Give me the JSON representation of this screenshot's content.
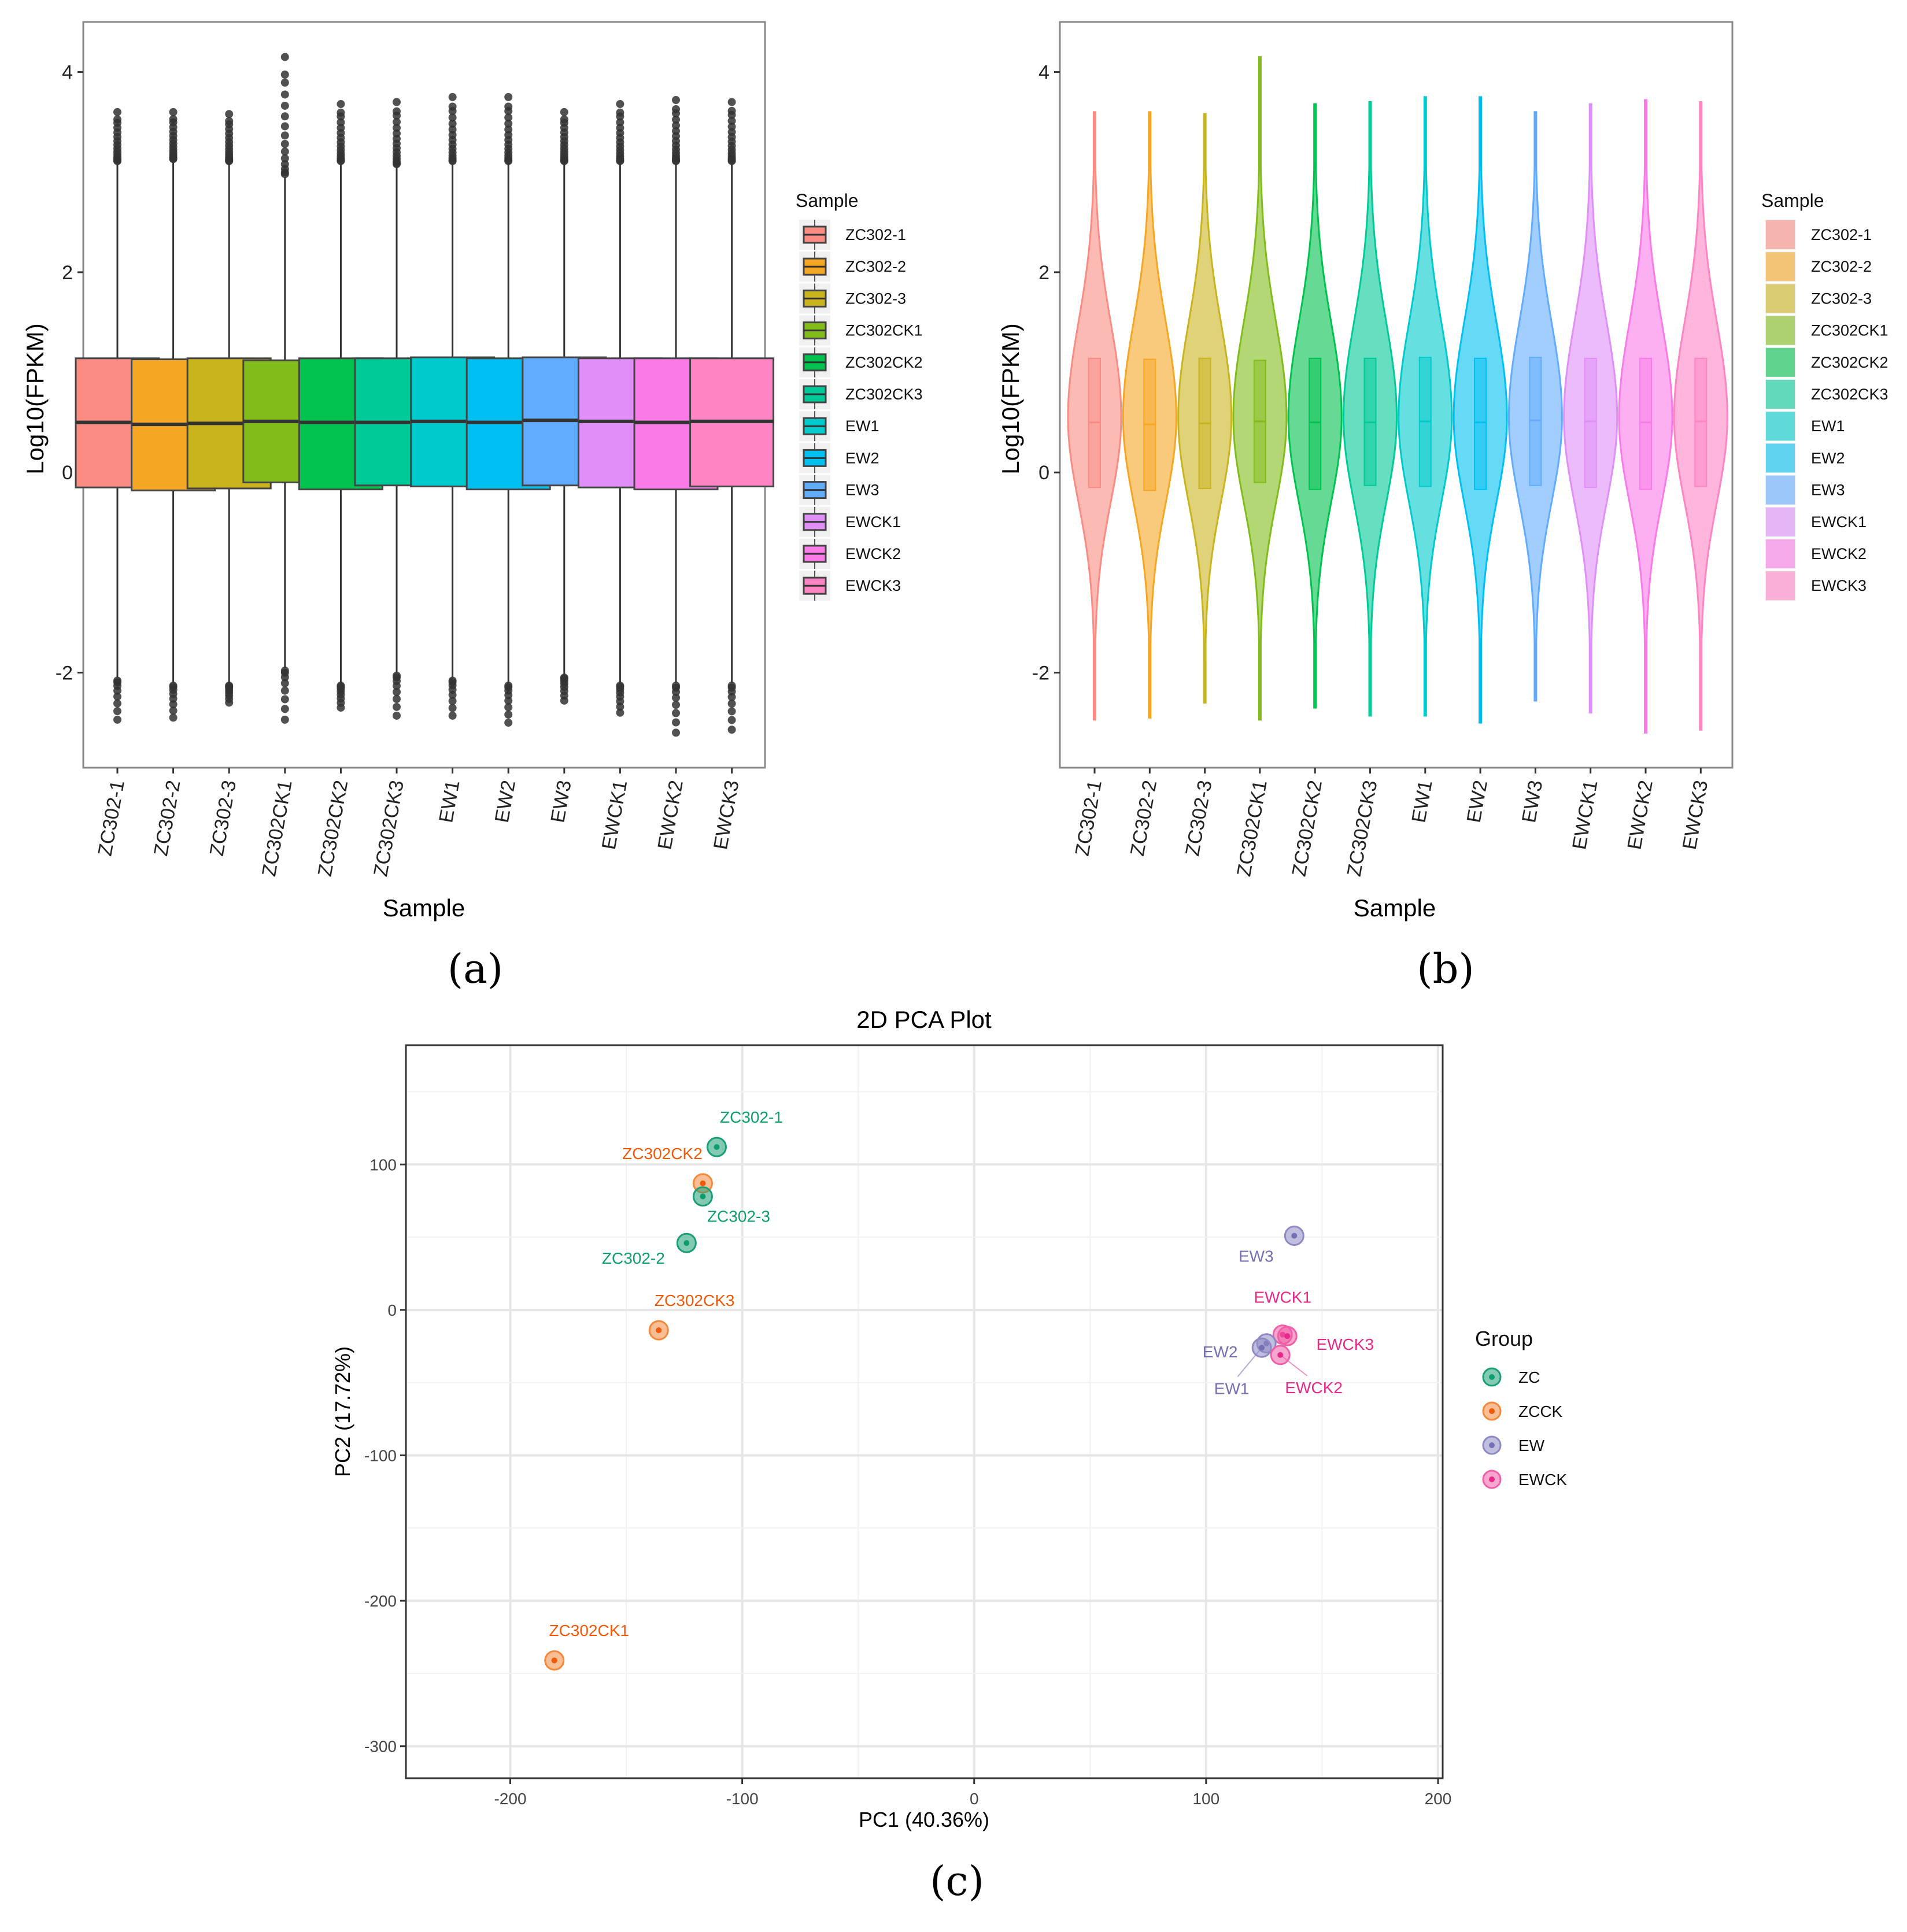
{
  "chart_data": [
    {
      "type": "box",
      "panel_label": "(a)",
      "xlabel": "Sample",
      "ylabel": "Log10(FPKM)",
      "ylim": [
        -2.95,
        4.5
      ],
      "yticks": [
        -2,
        0,
        2,
        4
      ],
      "legend_title": "Sample",
      "legend_position": "right",
      "categories": [
        "ZC302-1",
        "ZC302-2",
        "ZC302-3",
        "ZC302CK1",
        "ZC302CK2",
        "ZC302CK3",
        "EW1",
        "EW2",
        "EW3",
        "EWCK1",
        "EWCK2",
        "EWCK3"
      ],
      "colors": [
        "#FA8C84",
        "#F5A623",
        "#C9B41E",
        "#82BC1A",
        "#00C24E",
        "#00CA98",
        "#00CACC",
        "#00C0F2",
        "#62ACFF",
        "#E08EF8",
        "#FA7BE8",
        "#FF84C4"
      ],
      "stats": [
        {
          "q1": -0.15,
          "median": 0.5,
          "q3": 1.14,
          "lo": -2.05,
          "hi": 3.08,
          "min": -2.47,
          "max": 3.6
        },
        {
          "q1": -0.18,
          "median": 0.48,
          "q3": 1.13,
          "lo": -2.1,
          "hi": 3.1,
          "min": -2.45,
          "max": 3.6
        },
        {
          "q1": -0.16,
          "median": 0.49,
          "q3": 1.14,
          "lo": -2.1,
          "hi": 3.08,
          "min": -2.3,
          "max": 3.58
        },
        {
          "q1": -0.1,
          "median": 0.51,
          "q3": 1.12,
          "lo": -1.95,
          "hi": 2.95,
          "min": -2.47,
          "max": 4.15
        },
        {
          "q1": -0.17,
          "median": 0.5,
          "q3": 1.14,
          "lo": -2.1,
          "hi": 3.08,
          "min": -2.35,
          "max": 3.68
        },
        {
          "q1": -0.13,
          "median": 0.5,
          "q3": 1.14,
          "lo": -2.0,
          "hi": 3.05,
          "min": -2.43,
          "max": 3.7
        },
        {
          "q1": -0.14,
          "median": 0.51,
          "q3": 1.15,
          "lo": -2.05,
          "hi": 3.08,
          "min": -2.43,
          "max": 3.75
        },
        {
          "q1": -0.17,
          "median": 0.5,
          "q3": 1.14,
          "lo": -2.1,
          "hi": 3.08,
          "min": -2.5,
          "max": 3.75
        },
        {
          "q1": -0.13,
          "median": 0.52,
          "q3": 1.15,
          "lo": -2.02,
          "hi": 3.08,
          "min": -2.28,
          "max": 3.6
        },
        {
          "q1": -0.15,
          "median": 0.51,
          "q3": 1.14,
          "lo": -2.1,
          "hi": 3.08,
          "min": -2.4,
          "max": 3.68
        },
        {
          "q1": -0.17,
          "median": 0.5,
          "q3": 1.14,
          "lo": -2.1,
          "hi": 3.08,
          "min": -2.6,
          "max": 3.72
        },
        {
          "q1": -0.14,
          "median": 0.51,
          "q3": 1.14,
          "lo": -2.1,
          "hi": 3.08,
          "min": -2.57,
          "max": 3.7
        }
      ]
    },
    {
      "type": "violin",
      "panel_label": "(b)",
      "xlabel": "Sample",
      "ylabel": "Log10(FPKM)",
      "ylim": [
        -2.95,
        4.5
      ],
      "yticks": [
        -2,
        0,
        2,
        4
      ],
      "legend_title": "Sample",
      "legend_position": "right",
      "same_data_as_panel": "(a)"
    },
    {
      "type": "scatter",
      "panel_label": "(c)",
      "title": "2D PCA Plot",
      "xlabel": "PC1 (40.36%)",
      "ylabel": "PC2 (17.72%)",
      "xlim": [
        -245,
        202
      ],
      "ylim": [
        -322,
        182
      ],
      "xticks": [
        -200,
        -100,
        0,
        100,
        200
      ],
      "yticks": [
        -300,
        -200,
        -100,
        0,
        100
      ],
      "grid": true,
      "legend_title": "Group",
      "legend_position": "right",
      "groups": [
        {
          "name": "ZC",
          "color": "#1B9E77",
          "label_color": "#0E9E6E"
        },
        {
          "name": "ZCCK",
          "color": "#F4883A",
          "label_color": "#EE5A0A"
        },
        {
          "name": "EW",
          "color": "#8E8AC4",
          "label_color": "#7570B3"
        },
        {
          "name": "EWCK",
          "color": "#F05FA8",
          "label_color": "#E7298A"
        }
      ],
      "points": [
        {
          "label": "ZC302-1",
          "group": "ZC",
          "x": -111,
          "y": 112
        },
        {
          "label": "ZC302CK2",
          "group": "ZCCK",
          "x": -117,
          "y": 87
        },
        {
          "label": "ZC302-3",
          "group": "ZC",
          "x": -117,
          "y": 78
        },
        {
          "label": "ZC302-2",
          "group": "ZC",
          "x": -124,
          "y": 46
        },
        {
          "label": "ZC302CK3",
          "group": "ZCCK",
          "x": -136,
          "y": -14
        },
        {
          "label": "ZC302CK1",
          "group": "ZCCK",
          "x": -181,
          "y": -241
        },
        {
          "label": "EW3",
          "group": "EW",
          "x": 138,
          "y": 51
        },
        {
          "label": "EWCK1",
          "group": "EWCK",
          "x": 133,
          "y": -17
        },
        {
          "label": "EWCK3",
          "group": "EWCK",
          "x": 135,
          "y": -18
        },
        {
          "label": "EW2",
          "group": "EW",
          "x": 126,
          "y": -23
        },
        {
          "label": "EW1",
          "group": "EW",
          "x": 124,
          "y": -26
        },
        {
          "label": "EWCK2",
          "group": "EWCK",
          "x": 132,
          "y": -31
        }
      ]
    }
  ]
}
